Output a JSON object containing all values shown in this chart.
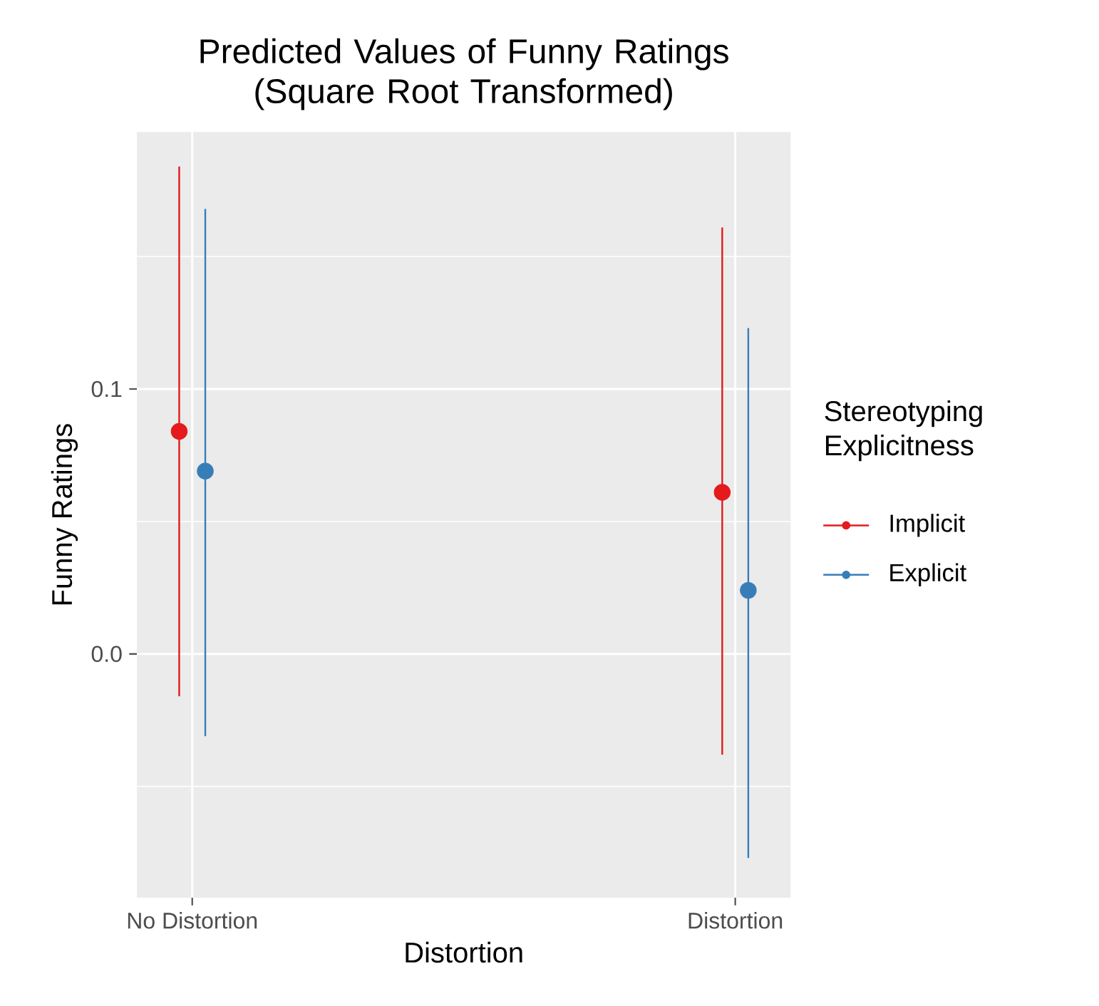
{
  "chart_data": {
    "type": "scatter",
    "title": "Predicted Values of Funny Ratings (Square Root Transformed)",
    "xlabel": "Distortion",
    "ylabel": "Funny Ratings",
    "legend_title": "Stereotyping Explicitness",
    "categories": [
      "No Distortion",
      "Distortion"
    ],
    "series": [
      {
        "name": "Implicit",
        "color": "#e41a1c",
        "values": [
          0.084,
          0.061
        ],
        "errors": [
          [
            -0.016,
            0.184
          ],
          [
            -0.038,
            0.161
          ]
        ]
      },
      {
        "name": "Explicit",
        "color": "#377eb8",
        "values": [
          0.069,
          0.024
        ],
        "errors": [
          [
            -0.031,
            0.168
          ],
          [
            -0.077,
            0.123
          ]
        ]
      }
    ],
    "ylim": [
      -0.092,
      0.197
    ],
    "yticks": [
      {
        "value": 0,
        "label": "0.0"
      },
      {
        "value": 0.1,
        "label": "0.1"
      }
    ],
    "grid": true,
    "legend": "right",
    "marker": "circle"
  }
}
